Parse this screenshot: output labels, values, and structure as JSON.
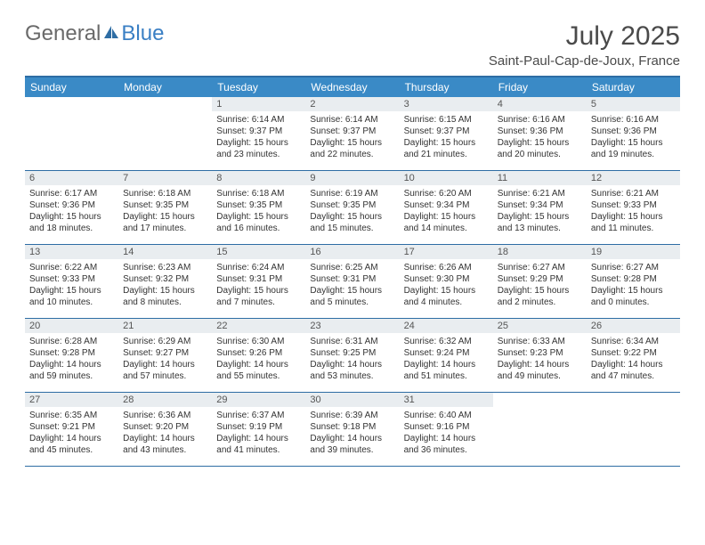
{
  "brand": {
    "part1": "General",
    "part2": "Blue"
  },
  "title": "July 2025",
  "location": "Saint-Paul-Cap-de-Joux, France",
  "colors": {
    "header_bg": "#3a8ac6",
    "border": "#2e6da4",
    "daynum_bg": "#e9edf0",
    "text": "#333333",
    "brand_gray": "#6a6a6a",
    "brand_blue": "#3a7fc4"
  },
  "dayNames": [
    "Sunday",
    "Monday",
    "Tuesday",
    "Wednesday",
    "Thursday",
    "Friday",
    "Saturday"
  ],
  "startOffset": 2,
  "days": [
    {
      "n": 1,
      "sr": "6:14 AM",
      "ss": "9:37 PM",
      "dl": "15 hours and 23 minutes."
    },
    {
      "n": 2,
      "sr": "6:14 AM",
      "ss": "9:37 PM",
      "dl": "15 hours and 22 minutes."
    },
    {
      "n": 3,
      "sr": "6:15 AM",
      "ss": "9:37 PM",
      "dl": "15 hours and 21 minutes."
    },
    {
      "n": 4,
      "sr": "6:16 AM",
      "ss": "9:36 PM",
      "dl": "15 hours and 20 minutes."
    },
    {
      "n": 5,
      "sr": "6:16 AM",
      "ss": "9:36 PM",
      "dl": "15 hours and 19 minutes."
    },
    {
      "n": 6,
      "sr": "6:17 AM",
      "ss": "9:36 PM",
      "dl": "15 hours and 18 minutes."
    },
    {
      "n": 7,
      "sr": "6:18 AM",
      "ss": "9:35 PM",
      "dl": "15 hours and 17 minutes."
    },
    {
      "n": 8,
      "sr": "6:18 AM",
      "ss": "9:35 PM",
      "dl": "15 hours and 16 minutes."
    },
    {
      "n": 9,
      "sr": "6:19 AM",
      "ss": "9:35 PM",
      "dl": "15 hours and 15 minutes."
    },
    {
      "n": 10,
      "sr": "6:20 AM",
      "ss": "9:34 PM",
      "dl": "15 hours and 14 minutes."
    },
    {
      "n": 11,
      "sr": "6:21 AM",
      "ss": "9:34 PM",
      "dl": "15 hours and 13 minutes."
    },
    {
      "n": 12,
      "sr": "6:21 AM",
      "ss": "9:33 PM",
      "dl": "15 hours and 11 minutes."
    },
    {
      "n": 13,
      "sr": "6:22 AM",
      "ss": "9:33 PM",
      "dl": "15 hours and 10 minutes."
    },
    {
      "n": 14,
      "sr": "6:23 AM",
      "ss": "9:32 PM",
      "dl": "15 hours and 8 minutes."
    },
    {
      "n": 15,
      "sr": "6:24 AM",
      "ss": "9:31 PM",
      "dl": "15 hours and 7 minutes."
    },
    {
      "n": 16,
      "sr": "6:25 AM",
      "ss": "9:31 PM",
      "dl": "15 hours and 5 minutes."
    },
    {
      "n": 17,
      "sr": "6:26 AM",
      "ss": "9:30 PM",
      "dl": "15 hours and 4 minutes."
    },
    {
      "n": 18,
      "sr": "6:27 AM",
      "ss": "9:29 PM",
      "dl": "15 hours and 2 minutes."
    },
    {
      "n": 19,
      "sr": "6:27 AM",
      "ss": "9:28 PM",
      "dl": "15 hours and 0 minutes."
    },
    {
      "n": 20,
      "sr": "6:28 AM",
      "ss": "9:28 PM",
      "dl": "14 hours and 59 minutes."
    },
    {
      "n": 21,
      "sr": "6:29 AM",
      "ss": "9:27 PM",
      "dl": "14 hours and 57 minutes."
    },
    {
      "n": 22,
      "sr": "6:30 AM",
      "ss": "9:26 PM",
      "dl": "14 hours and 55 minutes."
    },
    {
      "n": 23,
      "sr": "6:31 AM",
      "ss": "9:25 PM",
      "dl": "14 hours and 53 minutes."
    },
    {
      "n": 24,
      "sr": "6:32 AM",
      "ss": "9:24 PM",
      "dl": "14 hours and 51 minutes."
    },
    {
      "n": 25,
      "sr": "6:33 AM",
      "ss": "9:23 PM",
      "dl": "14 hours and 49 minutes."
    },
    {
      "n": 26,
      "sr": "6:34 AM",
      "ss": "9:22 PM",
      "dl": "14 hours and 47 minutes."
    },
    {
      "n": 27,
      "sr": "6:35 AM",
      "ss": "9:21 PM",
      "dl": "14 hours and 45 minutes."
    },
    {
      "n": 28,
      "sr": "6:36 AM",
      "ss": "9:20 PM",
      "dl": "14 hours and 43 minutes."
    },
    {
      "n": 29,
      "sr": "6:37 AM",
      "ss": "9:19 PM",
      "dl": "14 hours and 41 minutes."
    },
    {
      "n": 30,
      "sr": "6:39 AM",
      "ss": "9:18 PM",
      "dl": "14 hours and 39 minutes."
    },
    {
      "n": 31,
      "sr": "6:40 AM",
      "ss": "9:16 PM",
      "dl": "14 hours and 36 minutes."
    }
  ],
  "labels": {
    "sunrise": "Sunrise:",
    "sunset": "Sunset:",
    "daylight": "Daylight:"
  }
}
